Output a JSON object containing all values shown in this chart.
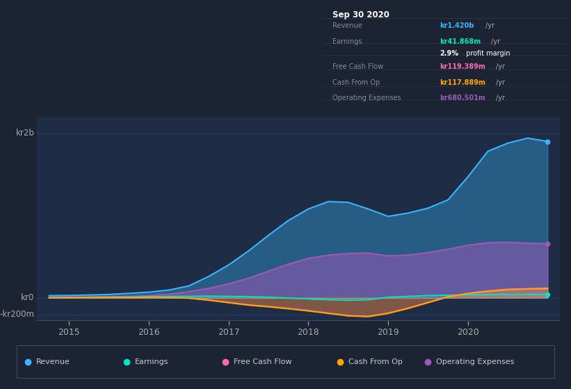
{
  "background_color": "#1c2333",
  "plot_bg_color": "#1e2d45",
  "grid_color": "#2a3a55",
  "title_box": {
    "date": "Sep 30 2020",
    "rows": [
      {
        "label": "Revenue",
        "value": "kr1.420b",
        "unit": "/yr",
        "value_color": "#38b6ff"
      },
      {
        "label": "Earnings",
        "value": "kr41.868m",
        "unit": "/yr",
        "value_color": "#00e5c0"
      },
      {
        "label": "",
        "value": "2.9%",
        "unit": " profit margin",
        "value_color": "#ffffff"
      },
      {
        "label": "Free Cash Flow",
        "value": "kr119.389m",
        "unit": "/yr",
        "value_color": "#ff69b4"
      },
      {
        "label": "Cash From Op",
        "value": "kr117.889m",
        "unit": "/yr",
        "value_color": "#ffa500"
      },
      {
        "label": "Operating Expenses",
        "value": "kr680.501m",
        "unit": "/yr",
        "value_color": "#9b59b6"
      }
    ]
  },
  "x_labels": [
    "2015",
    "2016",
    "2017",
    "2018",
    "2019",
    "2020"
  ],
  "y_label_texts": [
    "kr2b",
    "kr0",
    "-kr200m"
  ],
  "y_label_values": [
    2000,
    0,
    -200
  ],
  "ylim": [
    -280,
    2200
  ],
  "xlim": [
    2014.6,
    2021.15
  ],
  "series": {
    "Revenue": {
      "color": "#38b6ff",
      "fill_alpha": 0.35,
      "x": [
        2014.75,
        2015.0,
        2015.25,
        2015.5,
        2015.75,
        2016.0,
        2016.25,
        2016.5,
        2016.75,
        2017.0,
        2017.25,
        2017.5,
        2017.75,
        2018.0,
        2018.25,
        2018.5,
        2018.75,
        2019.0,
        2019.25,
        2019.5,
        2019.75,
        2020.0,
        2020.25,
        2020.5,
        2020.75,
        2021.0
      ],
      "y": [
        28,
        30,
        35,
        42,
        55,
        70,
        95,
        145,
        260,
        400,
        570,
        760,
        940,
        1080,
        1170,
        1160,
        1080,
        990,
        1030,
        1090,
        1190,
        1470,
        1780,
        1880,
        1940,
        1900
      ]
    },
    "Operating Expenses": {
      "color": "#9b59b6",
      "fill_alpha": 0.55,
      "x": [
        2014.75,
        2015.0,
        2015.25,
        2015.5,
        2015.75,
        2016.0,
        2016.25,
        2016.5,
        2016.75,
        2017.0,
        2017.25,
        2017.5,
        2017.75,
        2018.0,
        2018.25,
        2018.5,
        2018.75,
        2019.0,
        2019.25,
        2019.5,
        2019.75,
        2020.0,
        2020.25,
        2020.5,
        2020.75,
        2021.0
      ],
      "y": [
        5,
        7,
        10,
        13,
        18,
        28,
        45,
        75,
        115,
        170,
        240,
        325,
        410,
        480,
        520,
        540,
        545,
        510,
        520,
        550,
        590,
        640,
        670,
        675,
        665,
        655
      ]
    },
    "Earnings": {
      "color": "#00e5c0",
      "fill_alpha": 0.25,
      "x": [
        2014.75,
        2015.0,
        2015.25,
        2015.5,
        2015.75,
        2016.0,
        2016.25,
        2016.5,
        2016.75,
        2017.0,
        2017.25,
        2017.5,
        2017.75,
        2018.0,
        2018.25,
        2018.5,
        2018.75,
        2019.0,
        2019.25,
        2019.5,
        2019.75,
        2020.0,
        2020.25,
        2020.5,
        2020.75,
        2021.0
      ],
      "y": [
        3,
        5,
        8,
        10,
        12,
        15,
        17,
        19,
        21,
        18,
        15,
        8,
        -2,
        -12,
        -22,
        -28,
        -22,
        8,
        18,
        28,
        32,
        38,
        40,
        42,
        44,
        42
      ]
    },
    "Free Cash Flow": {
      "color": "#ff69b4",
      "fill_alpha": 0.25,
      "x": [
        2014.75,
        2015.0,
        2015.25,
        2015.5,
        2015.75,
        2016.0,
        2016.25,
        2016.5,
        2016.75,
        2017.0,
        2017.25,
        2017.5,
        2017.75,
        2018.0,
        2018.25,
        2018.5,
        2018.75,
        2019.0,
        2019.25,
        2019.5,
        2019.75,
        2020.0,
        2020.25,
        2020.5,
        2020.75,
        2021.0
      ],
      "y": [
        2,
        3,
        4,
        5,
        4,
        6,
        4,
        -2,
        -25,
        -55,
        -85,
        -105,
        -128,
        -155,
        -185,
        -215,
        -225,
        -185,
        -125,
        -55,
        15,
        55,
        85,
        105,
        112,
        118
      ]
    },
    "Cash From Op": {
      "color": "#ffa500",
      "fill_alpha": 0.25,
      "x": [
        2014.75,
        2015.0,
        2015.25,
        2015.5,
        2015.75,
        2016.0,
        2016.25,
        2016.5,
        2016.75,
        2017.0,
        2017.25,
        2017.5,
        2017.75,
        2018.0,
        2018.25,
        2018.5,
        2018.75,
        2019.0,
        2019.25,
        2019.5,
        2019.75,
        2020.0,
        2020.25,
        2020.5,
        2020.75,
        2021.0
      ],
      "y": [
        1,
        2,
        3,
        4,
        3,
        5,
        3,
        -3,
        -28,
        -58,
        -88,
        -108,
        -132,
        -158,
        -188,
        -218,
        -228,
        -188,
        -128,
        -58,
        12,
        52,
        80,
        100,
        108,
        112
      ]
    }
  },
  "series_order": [
    "Revenue",
    "Operating Expenses",
    "Earnings",
    "Free Cash Flow",
    "Cash From Op"
  ],
  "dot_series": [
    "Revenue",
    "Operating Expenses",
    "Earnings"
  ],
  "legend": [
    {
      "label": "Revenue",
      "color": "#38b6ff"
    },
    {
      "label": "Earnings",
      "color": "#00e5c0"
    },
    {
      "label": "Free Cash Flow",
      "color": "#ff69b4"
    },
    {
      "label": "Cash From Op",
      "color": "#ffa500"
    },
    {
      "label": "Operating Expenses",
      "color": "#9b59b6"
    }
  ]
}
